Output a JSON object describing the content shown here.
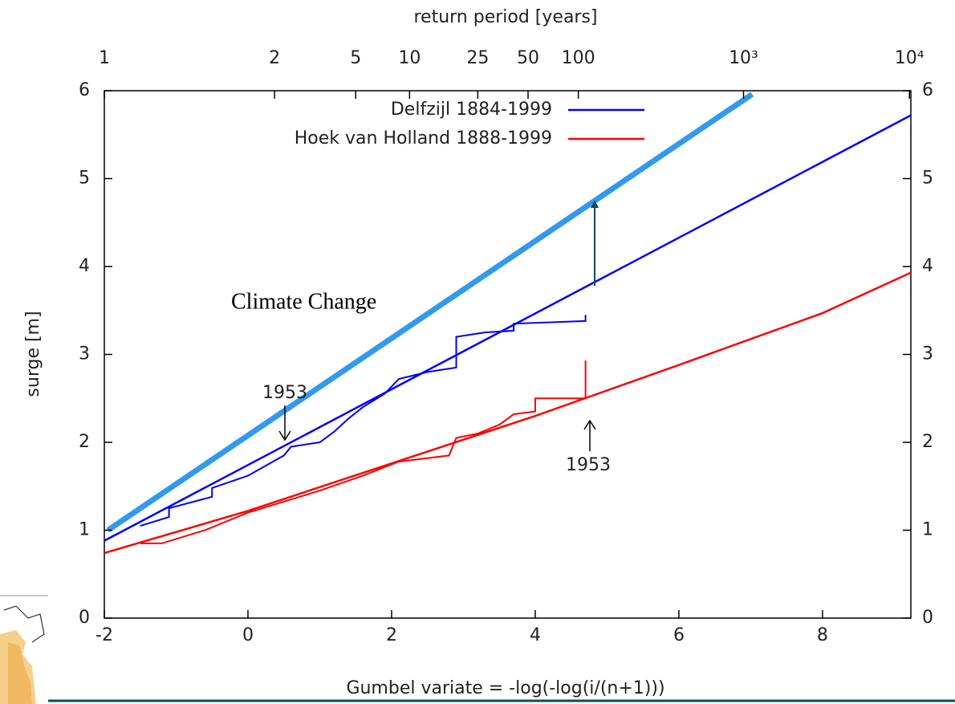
{
  "chart_data": {
    "type": "line",
    "xlabel": "Gumbel variate = -log(-log(i/(n+1)))",
    "ylabel": "surge [m]",
    "x2label": "return period [years]",
    "xlim": [
      -2,
      9.23
    ],
    "ylim": [
      0,
      6
    ],
    "xticks": [
      -2,
      0,
      2,
      4,
      6,
      8
    ],
    "yticks": [
      0,
      1,
      2,
      3,
      4,
      5,
      6
    ],
    "x2ticks": [
      {
        "value": -2,
        "label": "1"
      },
      {
        "value": 0.37,
        "label": "2"
      },
      {
        "value": 1.5,
        "label": "5"
      },
      {
        "value": 2.25,
        "label": "10"
      },
      {
        "value": 3.2,
        "label": "25"
      },
      {
        "value": 3.9,
        "label": "50"
      },
      {
        "value": 4.6,
        "label": "100"
      },
      {
        "value": 6.9,
        "label": "10³"
      },
      {
        "value": 9.21,
        "label": "10⁴"
      }
    ],
    "legend": "upper center",
    "series": [
      {
        "name": "Delfzijl 1884-1999",
        "color": "#0000ff",
        "x": [
          -2,
          9.23
        ],
        "values": [
          0.88,
          5.72
        ]
      },
      {
        "name": "Hoek van Holland 1888-1999",
        "color": "#ff0000",
        "x": [
          -2,
          0,
          2,
          4,
          6,
          8,
          9.23
        ],
        "values": [
          0.74,
          1.22,
          1.76,
          2.3,
          2.88,
          3.47,
          3.93
        ]
      },
      {
        "color": "#0000ff",
        "x": [
          -1.5,
          -1.1,
          -1.1,
          -0.5,
          -0.5,
          0,
          0.5,
          0.6,
          1.0,
          1.2,
          1.4,
          1.6,
          1.9,
          2.1,
          2.5,
          2.9,
          2.9,
          3.3,
          3.7,
          3.7,
          4.7,
          4.7
        ],
        "values": [
          1.05,
          1.15,
          1.25,
          1.38,
          1.48,
          1.62,
          1.85,
          1.95,
          2.0,
          2.12,
          2.27,
          2.4,
          2.55,
          2.72,
          2.8,
          2.85,
          3.2,
          3.25,
          3.27,
          3.35,
          3.38,
          3.45
        ]
      },
      {
        "color": "#ff0000",
        "x": [
          -1.5,
          -1.2,
          -0.6,
          0,
          1.0,
          1.6,
          2.1,
          2.8,
          2.9,
          3.2,
          3.5,
          3.7,
          4.0,
          4.0,
          4.7,
          4.7
        ],
        "values": [
          0.85,
          0.85,
          1.0,
          1.2,
          1.45,
          1.62,
          1.78,
          1.85,
          2.05,
          2.1,
          2.2,
          2.32,
          2.35,
          2.5,
          2.5,
          2.93
        ]
      },
      {
        "color": "#3399ee",
        "x": [
          -1.95,
          7.02
        ],
        "values": [
          1.0,
          5.96
        ]
      }
    ],
    "annotations": [
      "1953",
      "1953",
      "Climate Change"
    ]
  }
}
